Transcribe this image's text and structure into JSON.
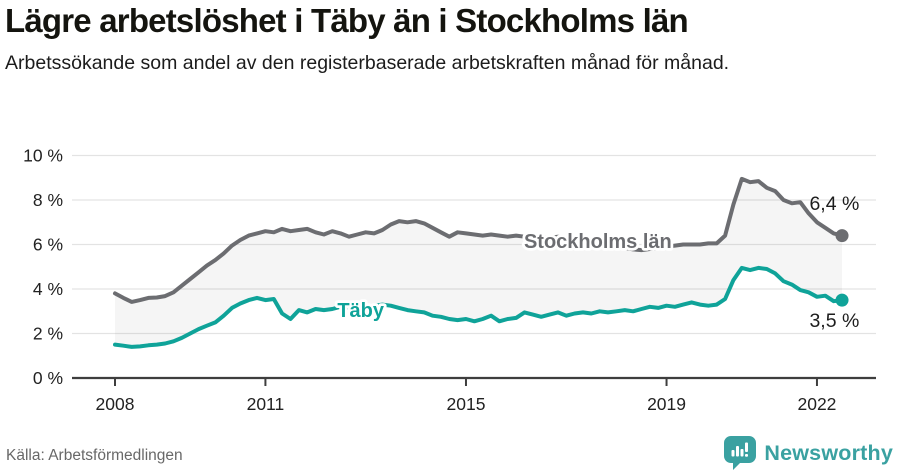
{
  "header": {
    "title": "Lägre arbetslöshet i Täby än i Stockholms län",
    "subtitle": "Arbetssökande som andel av den registerbaserade arbetskraften månad för månad."
  },
  "footer": {
    "source": "Källa: Arbetsförmedlingen",
    "brand": "Newsworthy"
  },
  "colors": {
    "stockholm_line": "#6C6D71",
    "taby_line": "#0FA399",
    "grid": "#e3e3e3",
    "axis": "#3e3e3e",
    "band_fill": "rgba(120,120,120,0.07)",
    "tick_text": "#222222",
    "end_label_text": "#1d1d1d",
    "brand_teal": "#3aa1a1"
  },
  "chart_data": {
    "type": "line",
    "title": "Lägre arbetslöshet i Täby än i Stockholms län",
    "subtitle": "Arbetssökande som andel av den registerbaserade arbetskraften månad för månad.",
    "xlabel": "",
    "ylabel": "",
    "ylim": [
      0,
      10
    ],
    "xlim": [
      2008.0,
      2022.5
    ],
    "grid": "horizontal",
    "y_ticks": {
      "values": [
        0,
        2,
        4,
        6,
        8,
        10
      ],
      "labels": [
        "0 %",
        "2 %",
        "4 %",
        "6 %",
        "8 %",
        "10 %"
      ]
    },
    "x_ticks": {
      "values": [
        2008,
        2011,
        2015,
        2019,
        2022
      ],
      "labels": [
        "2008",
        "2011",
        "2015",
        "2019",
        "2022"
      ]
    },
    "x": [
      2008.0,
      2008.167,
      2008.333,
      2008.5,
      2008.667,
      2008.833,
      2009.0,
      2009.167,
      2009.333,
      2009.5,
      2009.667,
      2009.833,
      2010.0,
      2010.167,
      2010.333,
      2010.5,
      2010.667,
      2010.833,
      2011.0,
      2011.167,
      2011.333,
      2011.5,
      2011.667,
      2011.833,
      2012.0,
      2012.167,
      2012.333,
      2012.5,
      2012.667,
      2012.833,
      2013.0,
      2013.167,
      2013.333,
      2013.5,
      2013.667,
      2013.833,
      2014.0,
      2014.167,
      2014.333,
      2014.5,
      2014.667,
      2014.833,
      2015.0,
      2015.167,
      2015.333,
      2015.5,
      2015.667,
      2015.833,
      2016.0,
      2016.167,
      2016.333,
      2016.5,
      2016.667,
      2016.833,
      2017.0,
      2017.167,
      2017.333,
      2017.5,
      2017.667,
      2017.833,
      2018.0,
      2018.167,
      2018.333,
      2018.5,
      2018.667,
      2018.833,
      2019.0,
      2019.167,
      2019.333,
      2019.5,
      2019.667,
      2019.833,
      2020.0,
      2020.167,
      2020.333,
      2020.5,
      2020.667,
      2020.833,
      2021.0,
      2021.167,
      2021.333,
      2021.5,
      2021.667,
      2021.833,
      2022.0,
      2022.167,
      2022.333,
      2022.5
    ],
    "series": [
      {
        "name": "Stockholms län",
        "color": "#6C6D71",
        "values": [
          3.8,
          3.6,
          3.42,
          3.5,
          3.6,
          3.62,
          3.68,
          3.85,
          4.15,
          4.45,
          4.75,
          5.05,
          5.3,
          5.6,
          5.95,
          6.2,
          6.4,
          6.5,
          6.6,
          6.55,
          6.7,
          6.6,
          6.65,
          6.7,
          6.55,
          6.45,
          6.6,
          6.5,
          6.35,
          6.45,
          6.55,
          6.5,
          6.65,
          6.9,
          7.05,
          7.0,
          7.05,
          6.95,
          6.75,
          6.55,
          6.35,
          6.55,
          6.5,
          6.45,
          6.4,
          6.45,
          6.4,
          6.35,
          6.4,
          6.35,
          6.3,
          6.35,
          6.3,
          6.35,
          6.3,
          6.25,
          6.2,
          6.15,
          6.1,
          6.0,
          5.95,
          5.85,
          5.78,
          5.75,
          5.8,
          5.85,
          5.9,
          5.95,
          6.0,
          6.0,
          6.0,
          6.05,
          6.05,
          6.4,
          7.8,
          8.95,
          8.8,
          8.85,
          8.55,
          8.4,
          8.0,
          7.85,
          7.9,
          7.4,
          7.0,
          6.75,
          6.5,
          6.4
        ],
        "end_value_label": "6,4 %",
        "line_label": "Stockholms län",
        "line_label_pos": {
          "x": 2017.63,
          "y": 5.84
        },
        "end_label_pos": {
          "x": 2021.85,
          "y": 7.55
        }
      },
      {
        "name": "Täby",
        "color": "#0FA399",
        "values": [
          1.5,
          1.45,
          1.4,
          1.42,
          1.47,
          1.5,
          1.55,
          1.65,
          1.8,
          2.0,
          2.2,
          2.35,
          2.5,
          2.8,
          3.15,
          3.35,
          3.5,
          3.6,
          3.5,
          3.55,
          2.9,
          2.65,
          3.05,
          2.95,
          3.1,
          3.05,
          3.1,
          3.2,
          3.15,
          3.25,
          3.2,
          3.25,
          3.3,
          3.25,
          3.15,
          3.05,
          3.0,
          2.95,
          2.8,
          2.75,
          2.65,
          2.6,
          2.65,
          2.55,
          2.65,
          2.8,
          2.55,
          2.65,
          2.7,
          2.95,
          2.85,
          2.75,
          2.85,
          2.95,
          2.8,
          2.9,
          2.95,
          2.9,
          3.0,
          2.95,
          3.0,
          3.05,
          3.0,
          3.1,
          3.2,
          3.15,
          3.25,
          3.2,
          3.3,
          3.4,
          3.3,
          3.25,
          3.3,
          3.55,
          4.4,
          4.95,
          4.85,
          4.95,
          4.9,
          4.7,
          4.35,
          4.2,
          3.95,
          3.85,
          3.65,
          3.7,
          3.45,
          3.5
        ],
        "end_value_label": "3,5 %",
        "line_label": "Täby",
        "line_label_pos": {
          "x": 2012.9,
          "y": 2.74
        },
        "end_label_pos": {
          "x": 2021.85,
          "y": 2.3
        }
      }
    ],
    "legend_position": "inline-labels",
    "band_between_series": true
  }
}
